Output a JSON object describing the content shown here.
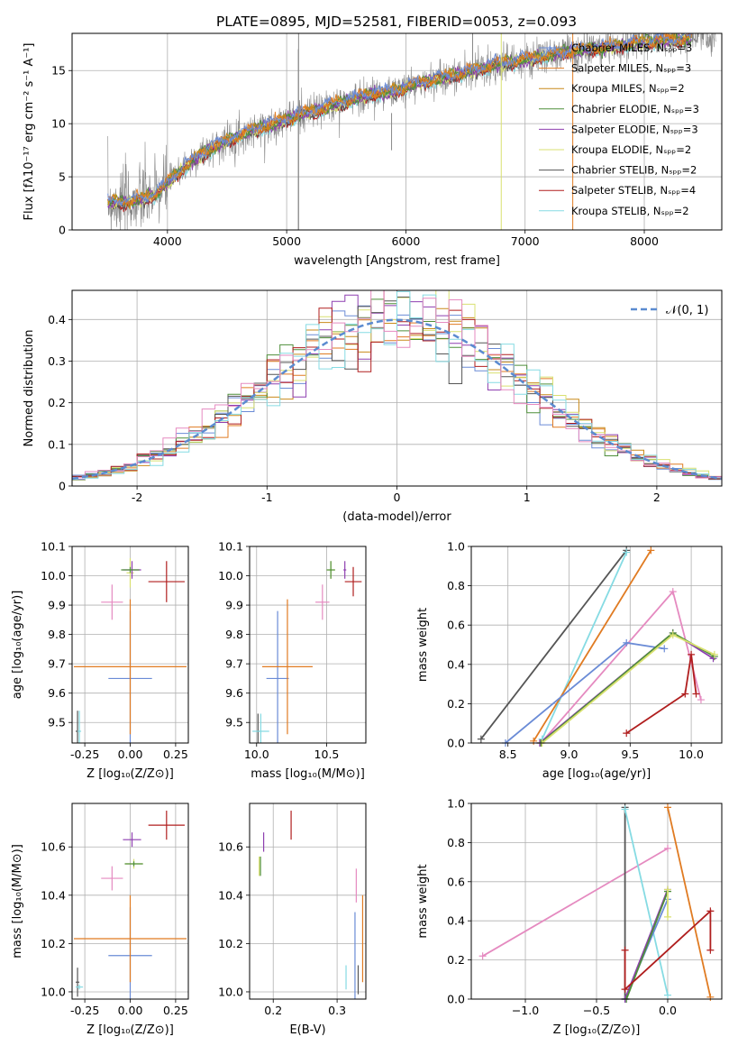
{
  "figure_title": "PLATE=0895, MJD=52581, FIBERID=0053, z=0.093",
  "colors": {
    "Chabrier MILES": "#6a8bd6",
    "Salpeter MILES": "#e07b22",
    "Kroupa MILES": "#c98a1a",
    "Chabrier ELODIE": "#4f8f3a",
    "Salpeter ELODIE": "#8e3fb0",
    "Kroupa ELODIE": "#d9e070",
    "Chabrier STELIB": "#555555",
    "Salpeter STELIB": "#b01e1e",
    "Kroupa STELIB": "#86dbe3",
    "pink_series": "#e58ac0",
    "gaussian": "#5b8bd0"
  },
  "chart_data": [
    {
      "id": "spectrum",
      "type": "line",
      "title": "",
      "xlabel": "wavelength [Angstrom, rest frame]",
      "ylabel": "Flux [fλ10⁻¹⁷ erg cm⁻² s⁻¹ A⁻¹]",
      "xlim": [
        3200,
        8650
      ],
      "ylim": [
        0,
        18.5
      ],
      "xticks": [
        4000,
        5000,
        6000,
        7000,
        8000
      ],
      "yticks": [
        0,
        5,
        10,
        15
      ],
      "legend_position": "top-right",
      "legend": [
        "Chabrier MILES, Nₛₚₚ=3",
        "Salpeter MILES, Nₛₚₚ=3",
        "Kroupa MILES, Nₛₚₚ=2",
        "Chabrier ELODIE, Nₛₚₚ=3",
        "Salpeter ELODIE, Nₛₚₚ=3",
        "Kroupa ELODIE, Nₛₚₚ=2",
        "Chabrier STELIB, Nₛₚₚ=2",
        "Salpeter STELIB, Nₛₚₚ=4",
        "Kroupa STELIB, Nₛₚₚ=2"
      ],
      "continuum": {
        "x": [
          3500,
          3700,
          3900,
          4100,
          4300,
          4500,
          4700,
          4900,
          5100,
          5300,
          5500,
          5700,
          5900,
          6100,
          6300,
          6500,
          6700,
          6900,
          7100,
          7300,
          7500,
          7700,
          7900,
          8100,
          8300,
          8500
        ],
        "y": [
          2.6,
          2.6,
          3.3,
          5.5,
          7.3,
          8.4,
          9.3,
          10.0,
          10.8,
          11.4,
          12.1,
          12.8,
          13.0,
          13.8,
          14.3,
          14.8,
          15.4,
          15.8,
          16.2,
          16.6,
          17.0,
          17.2,
          17.5,
          17.8,
          17.9,
          18.1
        ]
      }
    },
    {
      "id": "residuals",
      "type": "histogram",
      "title": "",
      "xlabel": "(data-model)/error",
      "ylabel": "Normed distribution",
      "xlim": [
        -2.5,
        2.5
      ],
      "ylim": [
        0,
        0.47
      ],
      "xticks": [
        -2,
        -1,
        0,
        1,
        2
      ],
      "yticks": [
        0.0,
        0.1,
        0.2,
        0.3,
        0.4
      ],
      "legend": [
        "𝒩(0, 1)"
      ],
      "legend_position": "top-right",
      "bin_edges_start": -2.5,
      "bin_width": 0.1,
      "gaussian": {
        "mean": 0,
        "sigma": 1
      }
    },
    {
      "id": "age_vs_Z",
      "type": "errorbar",
      "title": "",
      "xlabel": "Z [log₁₀(Z/Z⊙)]",
      "ylabel": "age  [log₁₀(age/yr)]",
      "xlim": [
        -0.32,
        0.32
      ],
      "ylim": [
        9.43,
        10.1
      ],
      "xticks": [
        "-0.25",
        "0.00",
        "0.25"
      ],
      "yticks": [
        "9.5",
        "9.6",
        "9.7",
        "9.8",
        "9.9",
        "10.0",
        "10.1"
      ],
      "points": [
        {
          "series": "Chabrier MILES",
          "x": 0.0,
          "y": 9.65,
          "xerr": 0.12,
          "yerr": 0.23
        },
        {
          "series": "Salpeter MILES",
          "x": 0.0,
          "y": 9.69,
          "xerr": 0.31,
          "yerr": 0.23
        },
        {
          "series": "Kroupa ELODIE",
          "x": 0.0,
          "y": 10.01,
          "xerr": 0.02,
          "yerr": 0.05
        },
        {
          "series": "Salpeter ELODIE",
          "x": 0.01,
          "y": 10.02,
          "xerr": 0.05,
          "yerr": 0.03
        },
        {
          "series": "Chabrier ELODIE",
          "x": 0.0,
          "y": 10.02,
          "xerr": 0.05,
          "yerr": 0.01
        },
        {
          "series": "Salpeter STELIB",
          "x": 0.2,
          "y": 9.98,
          "xerr": 0.1,
          "yerr": 0.07
        },
        {
          "series": "pink_series",
          "x": -0.1,
          "y": 9.91,
          "xerr": 0.06,
          "yerr": 0.06
        },
        {
          "series": "Chabrier STELIB",
          "x": -0.29,
          "y": 9.47,
          "xerr": 0.01,
          "yerr": 0.07
        },
        {
          "series": "Kroupa STELIB",
          "x": -0.28,
          "y": 9.47,
          "xerr": 0.01,
          "yerr": 0.07
        }
      ]
    },
    {
      "id": "age_vs_mass",
      "type": "errorbar",
      "title": "",
      "xlabel": "mass [log₁₀(M/M⊙)]",
      "ylabel": "",
      "xlim": [
        9.95,
        10.78
      ],
      "ylim": [
        9.43,
        10.1
      ],
      "xticks": [
        "10.0",
        "10.5"
      ],
      "yticks": [
        "9.5",
        "9.6",
        "9.7",
        "9.8",
        "9.9",
        "10.0",
        "10.1"
      ],
      "points": [
        {
          "series": "Chabrier MILES",
          "x": 10.15,
          "y": 9.65,
          "xerr": 0.08,
          "yerr": 0.23
        },
        {
          "series": "Salpeter MILES",
          "x": 10.22,
          "y": 9.69,
          "xerr": 0.18,
          "yerr": 0.23
        },
        {
          "series": "Kroupa ELODIE",
          "x": 10.53,
          "y": 10.02,
          "xerr": 0.03,
          "yerr": 0.03
        },
        {
          "series": "Chabrier ELODIE",
          "x": 10.53,
          "y": 10.02,
          "xerr": 0.03,
          "yerr": 0.03
        },
        {
          "series": "Salpeter ELODIE",
          "x": 10.63,
          "y": 10.02,
          "xerr": 0.01,
          "yerr": 0.03
        },
        {
          "series": "Salpeter STELIB",
          "x": 10.69,
          "y": 9.98,
          "xerr": 0.06,
          "yerr": 0.05
        },
        {
          "series": "pink_series",
          "x": 10.47,
          "y": 9.91,
          "xerr": 0.05,
          "yerr": 0.06
        },
        {
          "series": "Chabrier STELIB",
          "x": 10.01,
          "y": 9.47,
          "xerr": 0.01,
          "yerr": 0.06
        },
        {
          "series": "Kroupa STELIB",
          "x": 10.03,
          "y": 9.47,
          "xerr": 0.06,
          "yerr": 0.06
        }
      ]
    },
    {
      "id": "weight_vs_age",
      "type": "line",
      "title": "",
      "xlabel": "age  [log₁₀(age/yr)]",
      "ylabel": "mass weight",
      "xlim": [
        8.2,
        10.25
      ],
      "ylim": [
        0,
        1.0
      ],
      "xticks": [
        "8.5",
        "9.0",
        "9.5",
        "10.0"
      ],
      "yticks": [
        "0.0",
        "0.2",
        "0.4",
        "0.6",
        "0.8",
        "1.0"
      ],
      "series": [
        {
          "name": "Chabrier STELIB",
          "x": [
            8.28,
            9.47
          ],
          "y": [
            0.02,
            0.98
          ]
        },
        {
          "name": "Kroupa STELIB",
          "x": [
            8.78,
            9.47
          ],
          "y": [
            0.02,
            0.97
          ]
        },
        {
          "name": "Salpeter MILES",
          "x": [
            8.71,
            9.67
          ],
          "y": [
            0.01,
            0.98
          ]
        },
        {
          "name": "pink_series",
          "x": [
            8.77,
            9.85,
            10.08
          ],
          "y": [
            0.0,
            0.77,
            0.22
          ]
        },
        {
          "name": "Chabrier MILES",
          "x": [
            8.48,
            9.47,
            9.78
          ],
          "y": [
            0.0,
            0.51,
            0.48
          ]
        },
        {
          "name": "Salpeter ELODIE",
          "x": [
            8.76,
            9.85,
            10.18
          ],
          "y": [
            0.0,
            0.56,
            0.43
          ]
        },
        {
          "name": "Chabrier ELODIE",
          "x": [
            8.77,
            9.85,
            10.19
          ],
          "y": [
            0.0,
            0.56,
            0.44
          ]
        },
        {
          "name": "Kroupa ELODIE",
          "x": [
            8.78,
            9.85,
            10.19
          ],
          "y": [
            0.0,
            0.55,
            0.45
          ]
        },
        {
          "name": "Salpeter STELIB",
          "x": [
            9.47,
            9.95,
            10.0,
            10.04
          ],
          "y": [
            0.05,
            0.25,
            0.45,
            0.25
          ]
        }
      ]
    },
    {
      "id": "mass_vs_Z",
      "type": "errorbar",
      "title": "",
      "xlabel": "Z [log₁₀(Z/Z⊙)]",
      "ylabel": "mass [log₁₀(M/M⊙)]",
      "xlim": [
        -0.32,
        0.32
      ],
      "ylim": [
        9.97,
        10.78
      ],
      "xticks": [
        "-0.25",
        "0.00",
        "0.25"
      ],
      "yticks": [
        "10.0",
        "10.2",
        "10.4",
        "10.6"
      ],
      "points": [
        {
          "series": "Chabrier MILES",
          "x": 0.0,
          "y": 10.15,
          "xerr": 0.12,
          "yerr": 0.2
        },
        {
          "series": "Salpeter MILES",
          "x": 0.0,
          "y": 10.22,
          "xerr": 0.31,
          "yerr": 0.18
        },
        {
          "series": "Kroupa ELODIE",
          "x": 0.02,
          "y": 10.53,
          "xerr": 0.05,
          "yerr": 0.02
        },
        {
          "series": "Chabrier ELODIE",
          "x": 0.02,
          "y": 10.53,
          "xerr": 0.05,
          "yerr": 0.01
        },
        {
          "series": "Salpeter ELODIE",
          "x": 0.01,
          "y": 10.63,
          "xerr": 0.05,
          "yerr": 0.03
        },
        {
          "series": "Salpeter STELIB",
          "x": 0.2,
          "y": 10.69,
          "xerr": 0.1,
          "yerr": 0.06
        },
        {
          "series": "pink_series",
          "x": -0.1,
          "y": 10.47,
          "xerr": 0.06,
          "yerr": 0.05
        },
        {
          "series": "Chabrier STELIB",
          "x": -0.29,
          "y": 10.04,
          "xerr": 0.01,
          "yerr": 0.06
        },
        {
          "series": "Kroupa STELIB",
          "x": -0.28,
          "y": 10.02,
          "xerr": 0.02,
          "yerr": 0.01
        }
      ]
    },
    {
      "id": "mass_vs_ebv",
      "type": "errorbar",
      "title": "",
      "xlabel": "E(B-V)",
      "ylabel": "",
      "xlim": [
        0.163,
        0.345
      ],
      "ylim": [
        9.97,
        10.78
      ],
      "xticks": [
        "0.2",
        "0.3"
      ],
      "yticks": [
        "10.0",
        "10.2",
        "10.4",
        "10.6"
      ],
      "points": [
        {
          "series": "Chabrier MILES",
          "x": 0.328,
          "y": 10.15,
          "xerr": 0,
          "yerr": 0.18
        },
        {
          "series": "Salpeter MILES",
          "x": 0.34,
          "y": 10.22,
          "xerr": 0,
          "yerr": 0.18
        },
        {
          "series": "Kroupa ELODIE",
          "x": 0.178,
          "y": 10.52,
          "xerr": 0,
          "yerr": 0.04
        },
        {
          "series": "Chabrier ELODIE",
          "x": 0.18,
          "y": 10.52,
          "xerr": 0,
          "yerr": 0.04
        },
        {
          "series": "Salpeter ELODIE",
          "x": 0.185,
          "y": 10.62,
          "xerr": 0,
          "yerr": 0.04
        },
        {
          "series": "Salpeter STELIB",
          "x": 0.228,
          "y": 10.69,
          "xerr": 0,
          "yerr": 0.06
        },
        {
          "series": "pink_series",
          "x": 0.33,
          "y": 10.44,
          "xerr": 0,
          "yerr": 0.07
        },
        {
          "series": "Chabrier STELIB",
          "x": 0.333,
          "y": 10.05,
          "xerr": 0,
          "yerr": 0.06
        },
        {
          "series": "Kroupa STELIB",
          "x": 0.314,
          "y": 10.06,
          "xerr": 0,
          "yerr": 0.05
        }
      ]
    },
    {
      "id": "weight_vs_Z",
      "type": "line",
      "title": "",
      "xlabel": "Z [log₁₀(Z/Z⊙)]",
      "ylabel": "mass weight",
      "xlim": [
        -1.38,
        0.38
      ],
      "ylim": [
        0,
        1.0
      ],
      "xticks": [
        "−1.0",
        "−0.5",
        "0.0"
      ],
      "yticks": [
        "0.0",
        "0.2",
        "0.4",
        "0.6",
        "0.8",
        "1.0"
      ],
      "series": [
        {
          "name": "pink_series",
          "x": [
            -1.3,
            0.0
          ],
          "y": [
            0.22,
            0.77
          ]
        },
        {
          "name": "Chabrier STELIB",
          "x": [
            -0.3,
            -0.3
          ],
          "y": [
            0.0,
            0.98
          ]
        },
        {
          "name": "Kroupa STELIB",
          "x": [
            -0.3,
            0.0
          ],
          "y": [
            0.97,
            0.02
          ]
        },
        {
          "name": "Salpeter MILES",
          "x": [
            0.0,
            0.3
          ],
          "y": [
            0.98,
            0.01
          ]
        },
        {
          "name": "Chabrier MILES",
          "x": [
            -0.3,
            0.0
          ],
          "y": [
            0.0,
            0.51
          ]
        },
        {
          "name": "Salpeter ELODIE",
          "x": [
            -0.3,
            0.0
          ],
          "y": [
            0.0,
            0.56
          ]
        },
        {
          "name": "Chabrier ELODIE",
          "x": [
            -0.29,
            0.0
          ],
          "y": [
            0.0,
            0.55
          ]
        },
        {
          "name": "Kroupa ELODIE",
          "x": [
            0.0,
            0.0
          ],
          "y": [
            0.42,
            0.56
          ]
        },
        {
          "name": "Salpeter STELIB",
          "x": [
            -0.3,
            -0.3,
            0.3,
            0.3
          ],
          "y": [
            0.25,
            0.05,
            0.45,
            0.25
          ]
        }
      ]
    }
  ]
}
